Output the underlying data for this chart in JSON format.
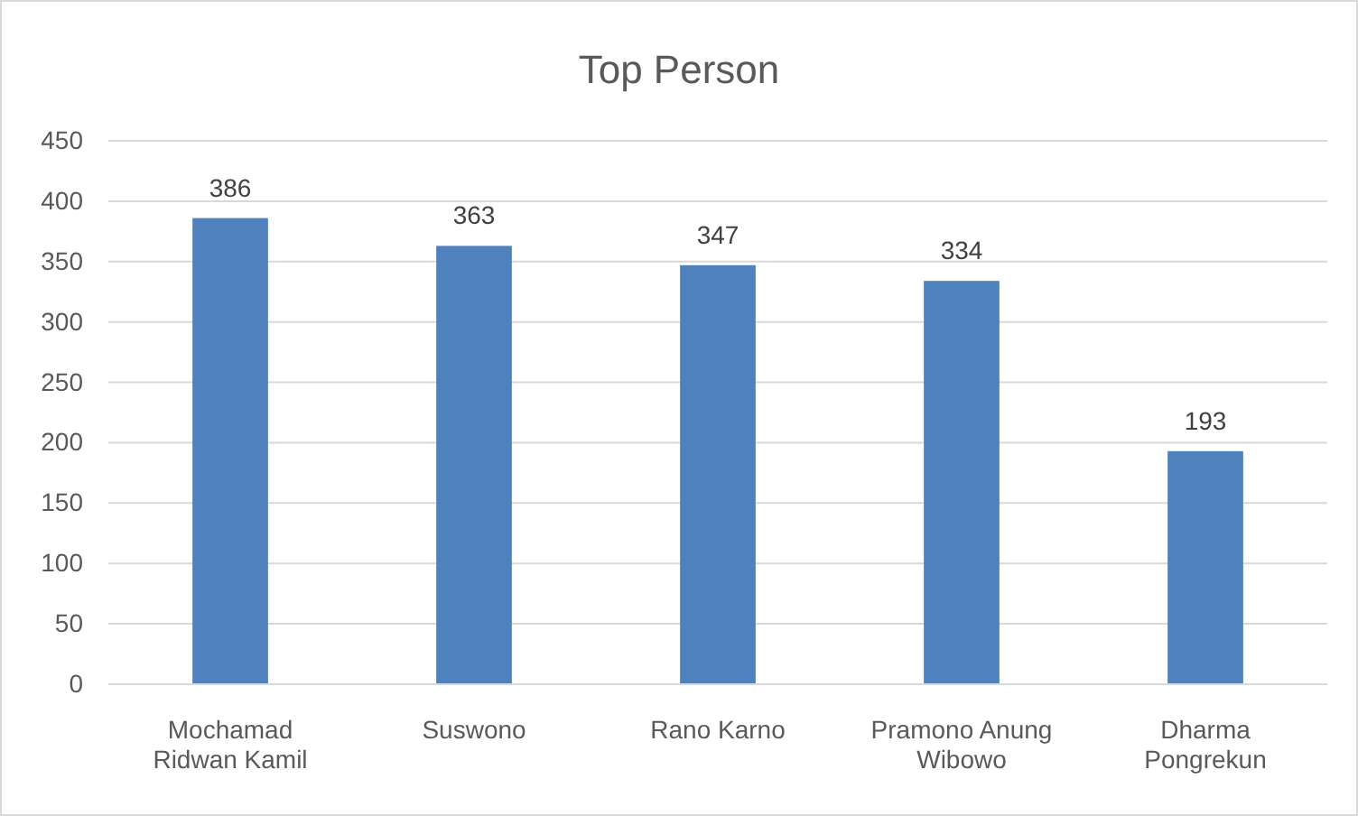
{
  "chart_data": {
    "type": "bar",
    "title": "Top Person",
    "categories": [
      "Mochamad Ridwan Kamil",
      "Suswono",
      "Rano Karno",
      "Pramono Anung Wibowo",
      "Dharma Pongrekun"
    ],
    "values": [
      386,
      363,
      347,
      334,
      193
    ],
    "color": "#4f81bd",
    "ylim": [
      0,
      450
    ],
    "yticks": [
      0,
      50,
      100,
      150,
      200,
      250,
      300,
      350,
      400,
      450
    ],
    "grid": "y",
    "data_labels": true
  }
}
